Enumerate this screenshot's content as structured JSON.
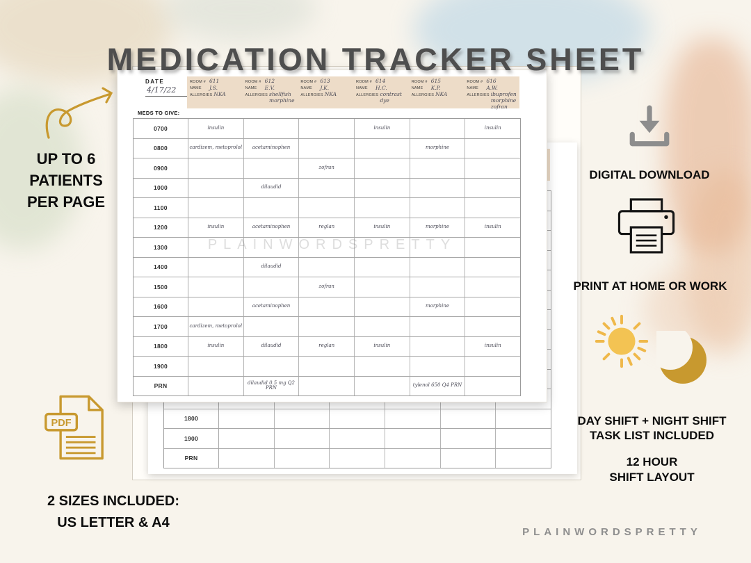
{
  "title": "MEDICATION TRACKER SHEET",
  "watermark": "PLAINWORDSPRETTY",
  "brand": "PLAINWORDSPRETTY",
  "left_note": [
    "UP TO 6",
    "PATIENTS",
    "PER PAGE"
  ],
  "features": {
    "download": "DIGITAL DOWNLOAD",
    "print": "PRINT AT HOME OR WORK",
    "shift_line1": "DAY SHIFT +  NIGHT SHIFT",
    "shift_line2": "TASK LIST INCLUDED",
    "layout_line1": "12 HOUR",
    "layout_line2": "SHIFT LAYOUT"
  },
  "sizes": [
    "2 SIZES INCLUDED:",
    "US LETTER & A4"
  ],
  "pdf_badge": "PDF",
  "colors": {
    "gold_accent": "#c8992f",
    "sun_yellow": "#f3c353",
    "title_gray": "#4e4e4e",
    "band_beige": "#eddcc8",
    "icon_gray": "#8d8d8d",
    "blue_wash": "#bdd7e6",
    "peach_wash": "#e2a57e",
    "sage_wash": "#cfdac1"
  },
  "sheet": {
    "date_label": "DATE",
    "date_value": "4/17/22",
    "meds_label": "MEDS TO GIVE:",
    "header_fields": [
      "ROOM #",
      "NAME",
      "ALLERGIES"
    ],
    "patients": [
      {
        "room": "611",
        "name": "J.S.",
        "allergies": "NKA"
      },
      {
        "room": "612",
        "name": "E.V.",
        "allergies": "shellfish morphine"
      },
      {
        "room": "613",
        "name": "J.K.",
        "allergies": "NKA"
      },
      {
        "room": "614",
        "name": "H.C.",
        "allergies": "contrast dye"
      },
      {
        "room": "615",
        "name": "K.P.",
        "allergies": "NKA"
      },
      {
        "room": "616",
        "name": "A.W.",
        "allergies": "ibuprofen morphine zofran"
      }
    ],
    "rows": [
      {
        "time": "0700",
        "cells": [
          "insulin",
          "",
          "",
          "insulin",
          "",
          "insulin"
        ]
      },
      {
        "time": "0800",
        "cells": [
          "cardizem, metoprolol",
          "acetaminophen",
          "",
          "",
          "morphine",
          ""
        ]
      },
      {
        "time": "0900",
        "cells": [
          "",
          "",
          "zofran",
          "",
          "",
          ""
        ]
      },
      {
        "time": "1000",
        "cells": [
          "",
          "dilaudid",
          "",
          "",
          "",
          ""
        ]
      },
      {
        "time": "1100",
        "cells": [
          "",
          "",
          "",
          "",
          "",
          ""
        ]
      },
      {
        "time": "1200",
        "cells": [
          "insulin",
          "acetaminophen",
          "reglan",
          "insulin",
          "morphine",
          "insulin"
        ]
      },
      {
        "time": "1300",
        "cells": [
          "",
          "",
          "",
          "",
          "",
          ""
        ]
      },
      {
        "time": "1400",
        "cells": [
          "",
          "dilaudid",
          "",
          "",
          "",
          ""
        ]
      },
      {
        "time": "1500",
        "cells": [
          "",
          "",
          "zofran",
          "",
          "",
          ""
        ]
      },
      {
        "time": "1600",
        "cells": [
          "",
          "acetaminophen",
          "",
          "",
          "morphine",
          ""
        ]
      },
      {
        "time": "1700",
        "cells": [
          "cardizem, metoprolol",
          "",
          "",
          "",
          "",
          ""
        ]
      },
      {
        "time": "1800",
        "cells": [
          "insulin",
          "dilaudid",
          "reglan",
          "insulin",
          "",
          "insulin"
        ]
      },
      {
        "time": "1900",
        "cells": [
          "",
          "",
          "",
          "",
          "",
          ""
        ]
      },
      {
        "time": "PRN",
        "cells": [
          "",
          "dilaudid 0.5 mg Q2 PRN",
          "",
          "",
          "tylenol 650 Q4 PRN",
          ""
        ]
      }
    ]
  }
}
